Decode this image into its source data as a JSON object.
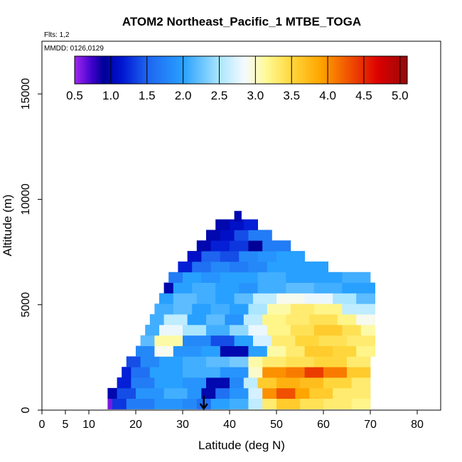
{
  "chart_data": {
    "type": "heatmap",
    "title": "ATOM2 Northeast_Pacific_1 MTBE_TOGA",
    "subtitle_flights": "Flts: 1,2",
    "subtitle_dates": "MMDD: 0126,0129",
    "xlabel": "Latitude (deg N)",
    "ylabel": "Altitude (m)",
    "xlim": [
      0,
      85
    ],
    "ylim": [
      0,
      17500
    ],
    "x_ticks": [
      0,
      5,
      10,
      20,
      30,
      40,
      50,
      60,
      70,
      80
    ],
    "x_tick_labels": [
      "0",
      "5",
      "10",
      "20",
      "30",
      "40",
      "50",
      "60",
      "70",
      "80"
    ],
    "y_ticks": [
      0,
      5000,
      10000,
      15000
    ],
    "y_tick_labels": [
      "0",
      "5000",
      "10000",
      "15000"
    ],
    "colorbar": {
      "range": [
        0.5,
        5.1
      ],
      "tick_values": [
        0.5,
        1.0,
        1.5,
        2.0,
        2.5,
        3.0,
        3.5,
        4.0,
        4.5,
        5.0
      ],
      "tick_labels": [
        "0.5",
        "1.0",
        "1.5",
        "2.0",
        "2.5",
        "3.0",
        "3.5",
        "4.0",
        "4.5",
        "5.0"
      ]
    },
    "marker": {
      "label": "flight start arrow",
      "latitude": 34.5
    },
    "layers": [
      {
        "alt": 300,
        "lat_min": 14,
        "lat_max": 70,
        "segments": [
          [
            14,
            15,
            0.6
          ],
          [
            15,
            18,
            1.3
          ],
          [
            18,
            24,
            1.7
          ],
          [
            24,
            30,
            1.9
          ],
          [
            30,
            33,
            1.8
          ],
          [
            33,
            36,
            1.6
          ],
          [
            36,
            40,
            2.0
          ],
          [
            40,
            44,
            2.1
          ],
          [
            44,
            47,
            2.6
          ],
          [
            47,
            50,
            3.3
          ],
          [
            50,
            55,
            3.6
          ],
          [
            55,
            60,
            3.4
          ],
          [
            60,
            66,
            3.3
          ],
          [
            66,
            70,
            3.2
          ]
        ]
      },
      {
        "alt": 800,
        "lat_min": 14,
        "lat_max": 70,
        "segments": [
          [
            14,
            16,
            1.0
          ],
          [
            16,
            20,
            1.4
          ],
          [
            20,
            26,
            1.9
          ],
          [
            26,
            31,
            2.1
          ],
          [
            31,
            34,
            1.9
          ],
          [
            34,
            37,
            1.0
          ],
          [
            37,
            40,
            1.6
          ],
          [
            40,
            44,
            1.9
          ],
          [
            44,
            47,
            2.7
          ],
          [
            47,
            50,
            4.0
          ],
          [
            50,
            54,
            4.3
          ],
          [
            54,
            57,
            3.9
          ],
          [
            57,
            62,
            3.6
          ],
          [
            62,
            70,
            3.3
          ]
        ]
      },
      {
        "alt": 1300,
        "lat_min": 16,
        "lat_max": 70,
        "segments": [
          [
            16,
            19,
            1.2
          ],
          [
            19,
            24,
            1.7
          ],
          [
            24,
            30,
            2.0
          ],
          [
            30,
            35,
            1.9
          ],
          [
            35,
            40,
            1.0
          ],
          [
            40,
            43,
            1.8
          ],
          [
            43,
            46,
            2.6
          ],
          [
            46,
            50,
            3.6
          ],
          [
            50,
            55,
            3.8
          ],
          [
            55,
            60,
            3.7
          ],
          [
            60,
            66,
            3.5
          ],
          [
            66,
            70,
            3.3
          ]
        ]
      },
      {
        "alt": 1800,
        "lat_min": 17,
        "lat_max": 70,
        "segments": [
          [
            17,
            19,
            1.2
          ],
          [
            19,
            23,
            1.6
          ],
          [
            23,
            30,
            2.0
          ],
          [
            30,
            38,
            2.1
          ],
          [
            38,
            44,
            1.9
          ],
          [
            44,
            47,
            3.0
          ],
          [
            47,
            52,
            4.0
          ],
          [
            52,
            56,
            4.1
          ],
          [
            56,
            60,
            4.4
          ],
          [
            60,
            65,
            4.1
          ],
          [
            65,
            70,
            3.6
          ]
        ]
      },
      {
        "alt": 2300,
        "lat_min": 18,
        "lat_max": 70,
        "segments": [
          [
            18,
            21,
            1.4
          ],
          [
            21,
            25,
            1.8
          ],
          [
            25,
            30,
            2.0
          ],
          [
            30,
            35,
            2.1
          ],
          [
            35,
            40,
            2.2
          ],
          [
            40,
            44,
            2.3
          ],
          [
            44,
            47,
            3.1
          ],
          [
            47,
            52,
            3.3
          ],
          [
            52,
            58,
            3.4
          ],
          [
            58,
            65,
            3.5
          ],
          [
            65,
            70,
            3.3
          ]
        ]
      },
      {
        "alt": 2800,
        "lat_min": 20,
        "lat_max": 71,
        "segments": [
          [
            20,
            24,
            1.8
          ],
          [
            24,
            28,
            2.9
          ],
          [
            28,
            34,
            1.9
          ],
          [
            34,
            38,
            2.0
          ],
          [
            38,
            44,
            1.0
          ],
          [
            44,
            48,
            2.0
          ],
          [
            48,
            52,
            3.1
          ],
          [
            52,
            56,
            3.3
          ],
          [
            56,
            62,
            3.6
          ],
          [
            62,
            67,
            3.5
          ],
          [
            67,
            71,
            3.2
          ]
        ]
      },
      {
        "alt": 3300,
        "lat_min": 21,
        "lat_max": 71,
        "segments": [
          [
            21,
            24,
            2.2
          ],
          [
            24,
            30,
            3.1
          ],
          [
            30,
            36,
            1.8
          ],
          [
            36,
            41,
            1.4
          ],
          [
            41,
            45,
            2.0
          ],
          [
            45,
            49,
            2.7
          ],
          [
            49,
            54,
            3.3
          ],
          [
            54,
            59,
            3.5
          ],
          [
            59,
            65,
            3.4
          ],
          [
            65,
            71,
            3.3
          ]
        ]
      },
      {
        "alt": 3800,
        "lat_min": 22,
        "lat_max": 71,
        "segments": [
          [
            22,
            25,
            2.1
          ],
          [
            25,
            30,
            2.8
          ],
          [
            30,
            35,
            2.5
          ],
          [
            35,
            40,
            2.1
          ],
          [
            40,
            44,
            2.4
          ],
          [
            44,
            48,
            2.8
          ],
          [
            48,
            53,
            3.2
          ],
          [
            53,
            58,
            3.4
          ],
          [
            58,
            64,
            3.6
          ],
          [
            64,
            68,
            3.4
          ],
          [
            68,
            71,
            3.1
          ]
        ]
      },
      {
        "alt": 4300,
        "lat_min": 23,
        "lat_max": 71,
        "segments": [
          [
            23,
            26,
            2.1
          ],
          [
            26,
            31,
            2.6
          ],
          [
            31,
            35,
            2.0
          ],
          [
            35,
            39,
            2.2
          ],
          [
            39,
            43,
            1.9
          ],
          [
            43,
            47,
            2.6
          ],
          [
            47,
            52,
            3.2
          ],
          [
            52,
            57,
            3.3
          ],
          [
            57,
            63,
            3.4
          ],
          [
            63,
            67,
            3.2
          ],
          [
            67,
            71,
            2.9
          ]
        ]
      },
      {
        "alt": 4800,
        "lat_min": 24,
        "lat_max": 71,
        "segments": [
          [
            24,
            28,
            2.1
          ],
          [
            28,
            32,
            2.2
          ],
          [
            32,
            36,
            2.0
          ],
          [
            36,
            40,
            2.1
          ],
          [
            40,
            44,
            2.0
          ],
          [
            44,
            48,
            2.5
          ],
          [
            48,
            53,
            3.1
          ],
          [
            53,
            58,
            3.3
          ],
          [
            58,
            64,
            3.2
          ],
          [
            64,
            71,
            2.6
          ]
        ]
      },
      {
        "alt": 5300,
        "lat_min": 25,
        "lat_max": 71,
        "segments": [
          [
            25,
            28,
            2.0
          ],
          [
            28,
            33,
            2.2
          ],
          [
            33,
            37,
            2.1
          ],
          [
            37,
            41,
            2.0
          ],
          [
            41,
            45,
            2.2
          ],
          [
            45,
            50,
            2.6
          ],
          [
            50,
            56,
            2.9
          ],
          [
            56,
            62,
            2.8
          ],
          [
            62,
            67,
            2.5
          ],
          [
            67,
            71,
            2.2
          ]
        ]
      },
      {
        "alt": 5800,
        "lat_min": 26,
        "lat_max": 71,
        "segments": [
          [
            26,
            28,
            1.0
          ],
          [
            28,
            32,
            2.0
          ],
          [
            32,
            37,
            2.1
          ],
          [
            37,
            42,
            2.0
          ],
          [
            42,
            46,
            1.9
          ],
          [
            46,
            52,
            2.1
          ],
          [
            52,
            58,
            2.2
          ],
          [
            58,
            64,
            2.1
          ],
          [
            64,
            71,
            2.0
          ]
        ]
      },
      {
        "alt": 6300,
        "lat_min": 27,
        "lat_max": 70,
        "segments": [
          [
            27,
            30,
            1.7
          ],
          [
            30,
            34,
            2.0
          ],
          [
            34,
            38,
            1.9
          ],
          [
            38,
            42,
            2.0
          ],
          [
            42,
            46,
            2.0
          ],
          [
            46,
            52,
            2.1
          ],
          [
            52,
            58,
            2.0
          ],
          [
            58,
            64,
            2.0
          ],
          [
            64,
            70,
            2.1
          ]
        ]
      },
      {
        "alt": 6800,
        "lat_min": 29,
        "lat_max": 61,
        "segments": [
          [
            29,
            32,
            1.2
          ],
          [
            32,
            36,
            1.6
          ],
          [
            36,
            40,
            1.8
          ],
          [
            40,
            44,
            1.7
          ],
          [
            44,
            48,
            1.8
          ],
          [
            48,
            54,
            2.0
          ],
          [
            54,
            61,
            2.0
          ]
        ]
      },
      {
        "alt": 7300,
        "lat_min": 31,
        "lat_max": 56,
        "segments": [
          [
            31,
            34,
            1.1
          ],
          [
            34,
            38,
            1.5
          ],
          [
            38,
            42,
            1.4
          ],
          [
            42,
            46,
            1.8
          ],
          [
            46,
            50,
            1.9
          ],
          [
            50,
            56,
            2.0
          ]
        ]
      },
      {
        "alt": 7800,
        "lat_min": 33,
        "lat_max": 53,
        "segments": [
          [
            33,
            36,
            1.0
          ],
          [
            36,
            40,
            1.2
          ],
          [
            40,
            44,
            1.3
          ],
          [
            44,
            47,
            0.9
          ],
          [
            47,
            53,
            1.7
          ]
        ]
      },
      {
        "alt": 8300,
        "lat_min": 35,
        "lat_max": 49,
        "segments": [
          [
            35,
            38,
            1.0
          ],
          [
            38,
            41,
            1.1
          ],
          [
            41,
            44,
            1.4
          ],
          [
            44,
            49,
            1.7
          ]
        ]
      },
      {
        "alt": 8800,
        "lat_min": 37,
        "lat_max": 46,
        "segments": [
          [
            37,
            40,
            1.0
          ],
          [
            40,
            43,
            1.1
          ],
          [
            43,
            46,
            1.2
          ]
        ]
      },
      {
        "alt": 9200,
        "lat_min": 41,
        "lat_max": 42.5,
        "segments": [
          [
            41,
            42.5,
            1.0
          ]
        ]
      }
    ]
  }
}
